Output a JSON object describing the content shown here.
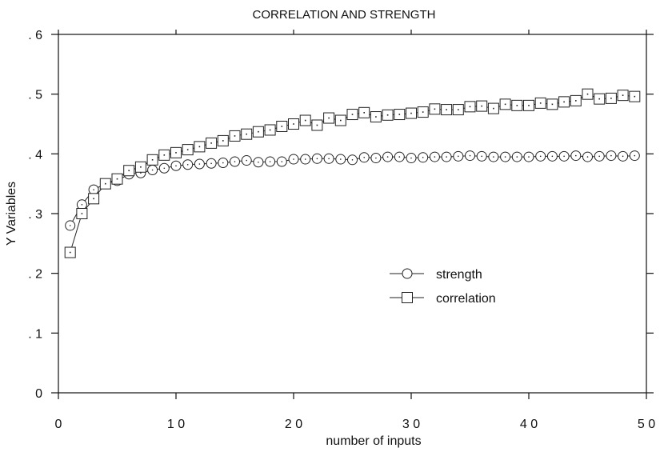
{
  "chart_data": {
    "type": "line",
    "title": "CORRELATION AND STRENGTH",
    "xlabel": "number of inputs",
    "ylabel": "Y Variables",
    "xlim": [
      0,
      50
    ],
    "ylim": [
      0,
      0.6
    ],
    "x_ticks": [
      0,
      10,
      20,
      30,
      40,
      50
    ],
    "x_tick_labels": [
      "0",
      "1 0",
      "2 0",
      "3 0",
      "4 0",
      "5 0"
    ],
    "y_ticks": [
      0,
      0.1,
      0.2,
      0.3,
      0.4,
      0.5,
      0.6
    ],
    "y_tick_labels": [
      "0",
      ". 1",
      ". 2",
      ". 3",
      ". 4",
      ". 5",
      ". 6"
    ],
    "grid": false,
    "legend_position": "center-right",
    "colors": {
      "axes": "#111111",
      "series": "#222222"
    },
    "series": [
      {
        "name": "strength",
        "marker": "circle",
        "x": [
          1,
          2,
          3,
          4,
          5,
          6,
          7,
          8,
          9,
          10,
          11,
          12,
          13,
          14,
          15,
          16,
          17,
          18,
          19,
          20,
          21,
          22,
          23,
          24,
          25,
          26,
          27,
          28,
          29,
          30,
          31,
          32,
          33,
          34,
          35,
          36,
          37,
          38,
          39,
          40,
          41,
          42,
          43,
          44,
          45,
          46,
          47,
          48,
          49
        ],
        "values": [
          0.28,
          0.315,
          0.34,
          0.35,
          0.355,
          0.366,
          0.368,
          0.373,
          0.376,
          0.38,
          0.382,
          0.383,
          0.384,
          0.385,
          0.387,
          0.389,
          0.386,
          0.387,
          0.387,
          0.391,
          0.391,
          0.392,
          0.392,
          0.391,
          0.39,
          0.394,
          0.393,
          0.395,
          0.395,
          0.393,
          0.394,
          0.395,
          0.395,
          0.396,
          0.397,
          0.396,
          0.395,
          0.395,
          0.395,
          0.395,
          0.396,
          0.396,
          0.396,
          0.397,
          0.395,
          0.396,
          0.397,
          0.396,
          0.397
        ]
      },
      {
        "name": "correlation",
        "marker": "square",
        "x": [
          1,
          2,
          3,
          4,
          5,
          6,
          7,
          8,
          9,
          10,
          11,
          12,
          13,
          14,
          15,
          16,
          17,
          18,
          19,
          20,
          21,
          22,
          23,
          24,
          25,
          26,
          27,
          28,
          29,
          30,
          31,
          32,
          33,
          34,
          35,
          36,
          37,
          38,
          39,
          40,
          41,
          42,
          43,
          44,
          45,
          46,
          47,
          48,
          49
        ],
        "values": [
          0.235,
          0.3,
          0.325,
          0.35,
          0.358,
          0.372,
          0.378,
          0.39,
          0.398,
          0.402,
          0.407,
          0.412,
          0.418,
          0.422,
          0.43,
          0.433,
          0.437,
          0.44,
          0.446,
          0.45,
          0.456,
          0.448,
          0.46,
          0.456,
          0.466,
          0.469,
          0.462,
          0.465,
          0.466,
          0.468,
          0.47,
          0.475,
          0.474,
          0.474,
          0.479,
          0.48,
          0.476,
          0.483,
          0.481,
          0.481,
          0.485,
          0.483,
          0.487,
          0.489,
          0.5,
          0.492,
          0.493,
          0.498,
          0.496
        ]
      }
    ],
    "annotations": []
  }
}
